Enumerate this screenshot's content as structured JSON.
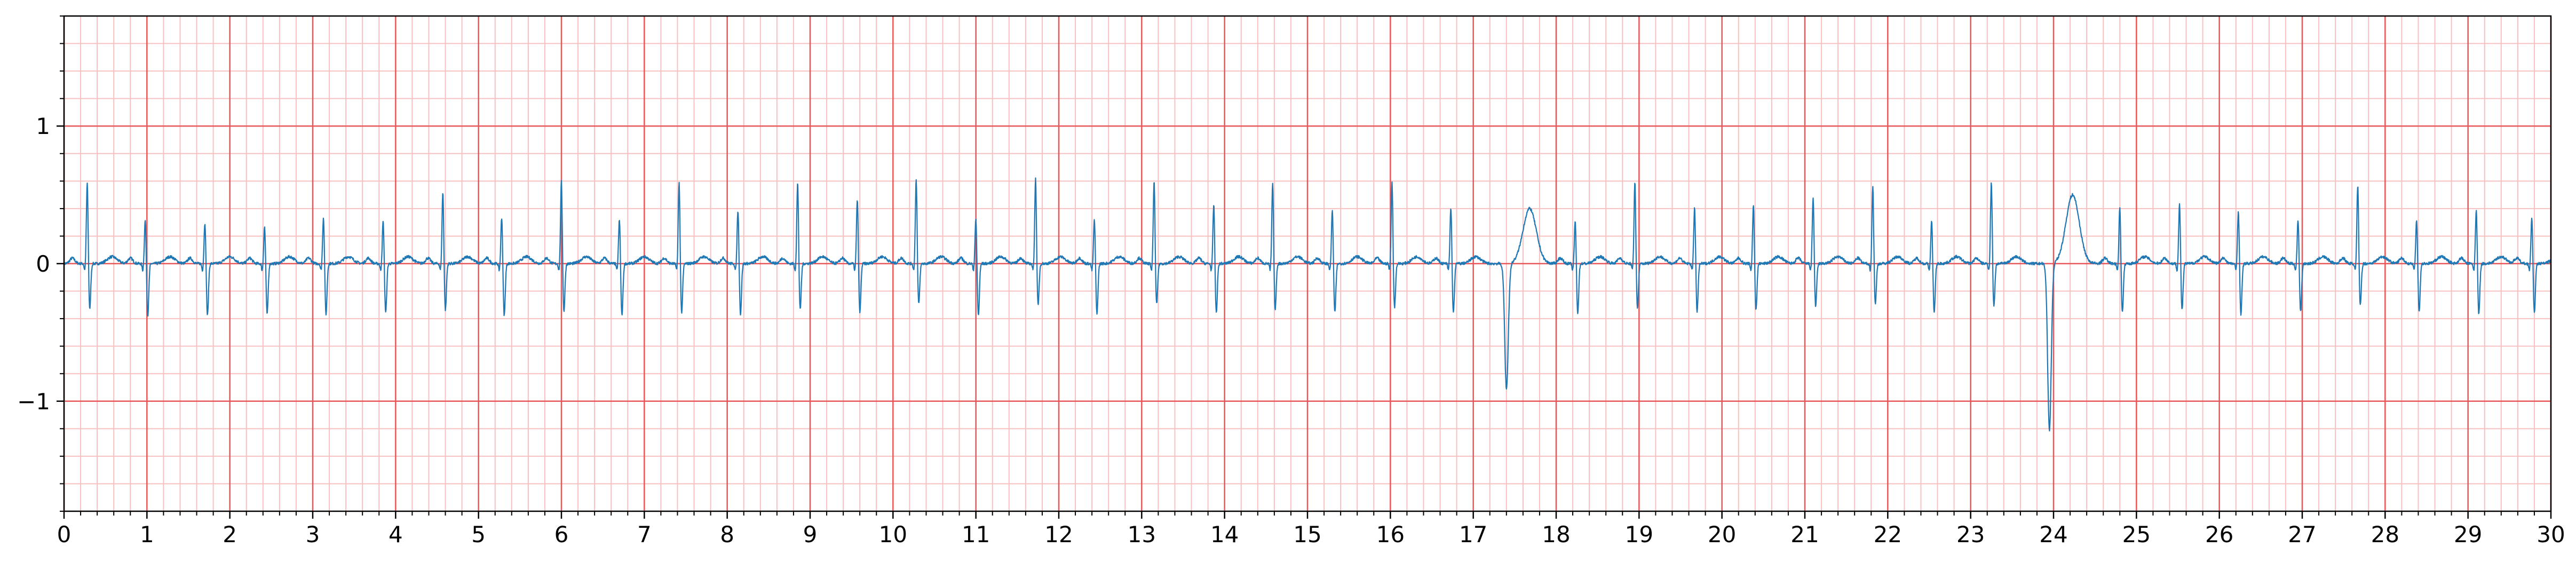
{
  "chart_data": {
    "type": "line",
    "title": "",
    "xlabel": "",
    "ylabel": "",
    "xlim": [
      0,
      30
    ],
    "ylim": [
      -1.8,
      1.8
    ],
    "x_ticks": [
      "0",
      "1",
      "2",
      "3",
      "4",
      "5",
      "6",
      "7",
      "8",
      "9",
      "10",
      "11",
      "12",
      "13",
      "14",
      "15",
      "16",
      "17",
      "18",
      "19",
      "20",
      "21",
      "22",
      "23",
      "24",
      "25",
      "26",
      "27",
      "28",
      "29",
      "30"
    ],
    "y_ticks": [
      {
        "value": 1,
        "label": "1"
      },
      {
        "value": 0,
        "label": "0"
      },
      {
        "value": -1,
        "label": "−1"
      }
    ],
    "grid": {
      "major": true,
      "minor": true,
      "major_step_x": 1,
      "minor_step_x": 0.2,
      "major_step_y": 1,
      "minor_step_y": 0.2
    },
    "colors": {
      "line": "#1f77b4",
      "major_grid": "#e8585a",
      "minor_grid": "#f8c0c0",
      "axis": "#000000"
    },
    "series": [
      {
        "beats": [
          {
            "t": 0.28,
            "r": 0.6,
            "s": -0.33
          },
          {
            "t": 0.98,
            "r": 0.33,
            "s": -0.38
          },
          {
            "t": 1.7,
            "r": 0.31,
            "s": -0.38
          },
          {
            "t": 2.42,
            "r": 0.28,
            "s": -0.37
          },
          {
            "t": 3.13,
            "r": 0.35,
            "s": -0.37
          },
          {
            "t": 3.85,
            "r": 0.32,
            "s": -0.36
          },
          {
            "t": 4.57,
            "r": 0.53,
            "s": -0.34
          },
          {
            "t": 5.28,
            "r": 0.35,
            "s": -0.38
          },
          {
            "t": 6.0,
            "r": 0.61,
            "s": -0.35
          },
          {
            "t": 6.7,
            "r": 0.33,
            "s": -0.38
          },
          {
            "t": 7.42,
            "r": 0.6,
            "s": -0.36
          },
          {
            "t": 8.13,
            "r": 0.4,
            "s": -0.37
          },
          {
            "t": 8.85,
            "r": 0.6,
            "s": -0.34
          },
          {
            "t": 9.57,
            "r": 0.48,
            "s": -0.36
          },
          {
            "t": 10.28,
            "r": 0.63,
            "s": -0.3
          },
          {
            "t": 11.0,
            "r": 0.33,
            "s": -0.38
          },
          {
            "t": 11.72,
            "r": 0.63,
            "s": -0.31
          },
          {
            "t": 12.43,
            "r": 0.33,
            "s": -0.37
          },
          {
            "t": 13.15,
            "r": 0.61,
            "s": -0.3
          },
          {
            "t": 13.87,
            "r": 0.44,
            "s": -0.36
          },
          {
            "t": 14.58,
            "r": 0.59,
            "s": -0.34
          },
          {
            "t": 15.3,
            "r": 0.4,
            "s": -0.36
          },
          {
            "t": 16.02,
            "r": 0.6,
            "s": -0.32
          },
          {
            "t": 16.73,
            "r": 0.42,
            "s": -0.36
          },
          {
            "t": 17.4,
            "r": 0.05,
            "s": -0.92,
            "t_wave": 0.4,
            "ectopic": true
          },
          {
            "t": 18.23,
            "r": 0.32,
            "s": -0.36
          },
          {
            "t": 18.95,
            "r": 0.61,
            "s": -0.33
          },
          {
            "t": 19.67,
            "r": 0.42,
            "s": -0.35
          },
          {
            "t": 20.38,
            "r": 0.44,
            "s": -0.34
          },
          {
            "t": 21.1,
            "r": 0.49,
            "s": -0.32
          },
          {
            "t": 21.82,
            "r": 0.57,
            "s": -0.3
          },
          {
            "t": 22.53,
            "r": 0.32,
            "s": -0.36
          },
          {
            "t": 23.25,
            "r": 0.6,
            "s": -0.31
          },
          {
            "t": 23.95,
            "r": 0.05,
            "s": -1.22,
            "t_wave": 0.5,
            "ectopic": true
          },
          {
            "t": 24.8,
            "r": 0.42,
            "s": -0.36
          },
          {
            "t": 25.52,
            "r": 0.45,
            "s": -0.34
          },
          {
            "t": 26.23,
            "r": 0.4,
            "s": -0.37
          },
          {
            "t": 26.95,
            "r": 0.33,
            "s": -0.35
          },
          {
            "t": 27.67,
            "r": 0.58,
            "s": -0.31
          },
          {
            "t": 28.38,
            "r": 0.33,
            "s": -0.35
          },
          {
            "t": 29.1,
            "r": 0.4,
            "s": -0.37
          },
          {
            "t": 29.77,
            "r": 0.35,
            "s": -0.36
          }
        ]
      }
    ]
  }
}
